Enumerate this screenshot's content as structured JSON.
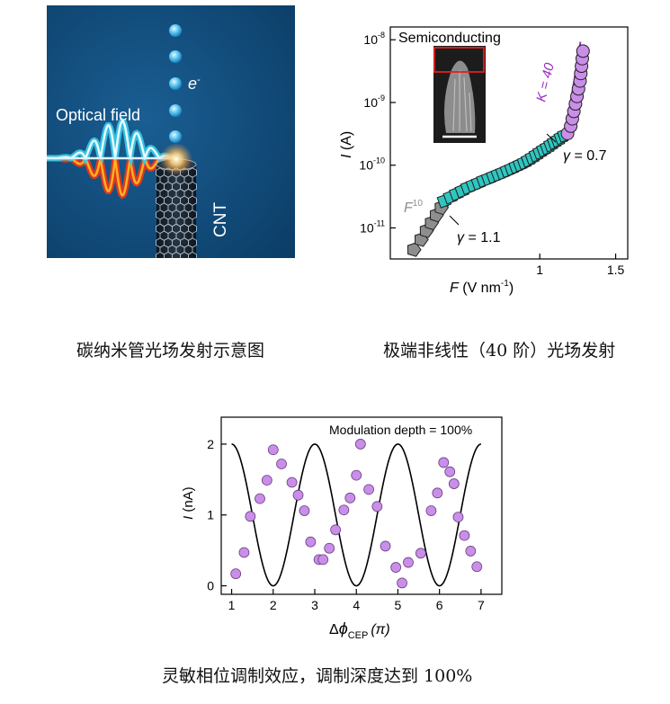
{
  "illustration": {
    "optical_field_label": "Optical field",
    "electron_label": "e",
    "electron_superscript": "-",
    "cnt_label": "CNT",
    "colors": {
      "background": "#0f4a78",
      "wave_cyan": "#36c6e6",
      "wave_red": "#e8381d",
      "electron": "#6fd0f4"
    }
  },
  "captions": {
    "top_left": "碳纳米管光场发射示意图",
    "top_right": "极端非线性（40 阶）光场发射",
    "bottom": "灵敏相位调制效应，调制深度达到 100%"
  },
  "chart_data": [
    {
      "type": "scatter",
      "title": "Semiconducting",
      "xlabel_var": "F",
      "xlabel_unit": "(V nm",
      "xlabel_unit_sup": "-1",
      "xlabel_unit_end": ")",
      "ylabel_var": "I",
      "ylabel_unit": "(A)",
      "xscale": "log",
      "yscale": "log",
      "xlim": [
        0.45,
        1.6
      ],
      "ylim": [
        3.2e-12,
        1.6e-08
      ],
      "x_ticks": [
        {
          "value": 1,
          "label": "1"
        },
        {
          "value": 1.5,
          "label": "1.5"
        }
      ],
      "y_ticks": [
        {
          "value": 1e-08,
          "base": "10",
          "exp": "-8"
        },
        {
          "value": 1e-09,
          "base": "10",
          "exp": "-9"
        },
        {
          "value": 1e-10,
          "base": "10",
          "exp": "-10"
        },
        {
          "value": 1e-11,
          "base": "10",
          "exp": "-11"
        }
      ],
      "series": [
        {
          "name": "gray pentagons",
          "marker": "pentagon",
          "color": "#8e8e8e",
          "x": [
            0.51,
            0.53,
            0.545,
            0.56,
            0.575,
            0.59
          ],
          "y": [
            4.5e-12,
            6.5e-12,
            9e-12,
            1.2e-11,
            1.6e-11,
            2.1e-11
          ]
        },
        {
          "name": "cyan squares",
          "marker": "square",
          "color": "#2fc6c0",
          "x": [
            0.6,
            0.62,
            0.64,
            0.66,
            0.68,
            0.7,
            0.72,
            0.74,
            0.76,
            0.78,
            0.8,
            0.82,
            0.84,
            0.86,
            0.88,
            0.9,
            0.92,
            0.94,
            0.96,
            0.98,
            1.0,
            1.02,
            1.04,
            1.06,
            1.08,
            1.1,
            1.12,
            1.14
          ],
          "y": [
            2.7e-11,
            3.1e-11,
            3.5e-11,
            3.9e-11,
            4.4e-11,
            4.8e-11,
            5.2e-11,
            5.7e-11,
            6.1e-11,
            6.6e-11,
            7.1e-11,
            7.6e-11,
            8.2e-11,
            8.8e-11,
            9.5e-11,
            1.02e-10,
            1.1e-10,
            1.2e-10,
            1.32e-10,
            1.45e-10,
            1.6e-10,
            1.75e-10,
            1.9e-10,
            2.1e-10,
            2.3e-10,
            2.5e-10,
            2.75e-10,
            3e-10
          ]
        },
        {
          "name": "purple circles",
          "marker": "circle",
          "color": "#c98fe8",
          "x": [
            1.16,
            1.18,
            1.19,
            1.2,
            1.21,
            1.22,
            1.23,
            1.24,
            1.245,
            1.25,
            1.255,
            1.26
          ],
          "y": [
            3.2e-10,
            4.2e-10,
            5.5e-10,
            7.2e-10,
            9.5e-10,
            1.25e-09,
            1.65e-09,
            2.2e-09,
            2.9e-09,
            3.8e-09,
            5e-09,
            6.6e-09
          ]
        }
      ],
      "annotations": {
        "gamma_low_symbol": "γ",
        "gamma_low": " = 1.1",
        "gamma_high_symbol": "γ",
        "gamma_high": " = 0.7",
        "slope_k": "K = 40",
        "f_power_base": "F",
        "f_power_exp": "10"
      }
    },
    {
      "type": "scatter",
      "title": "Modulation depth = 100%",
      "xlabel_main": "Δ",
      "xlabel_phi": "ϕ",
      "xlabel_sub": "CEP",
      "xlabel_unit": "(π)",
      "ylabel_var": "I",
      "ylabel_unit": "(nA)",
      "xlim": [
        0.75,
        7.5
      ],
      "ylim": [
        -0.12,
        2.38
      ],
      "x_ticks": [
        1,
        2,
        3,
        4,
        5,
        6,
        7
      ],
      "y_ticks": [
        0,
        1,
        2
      ],
      "fit": {
        "name": "fit",
        "color": "#000000",
        "function": "1 - cos(pi*x)",
        "amplitude": 1,
        "offset": 1
      },
      "series": [
        {
          "name": "data",
          "marker": "circle",
          "color": "#c98fe8",
          "x": [
            1.1,
            1.3,
            1.45,
            1.68,
            1.85,
            2.0,
            2.2,
            2.45,
            2.6,
            2.75,
            2.9,
            3.1,
            3.2,
            3.35,
            3.5,
            3.7,
            3.85,
            4.0,
            4.1,
            4.3,
            4.5,
            4.7,
            4.95,
            5.1,
            5.25,
            5.55,
            5.8,
            5.95,
            6.1,
            6.25,
            6.35,
            6.45,
            6.6,
            6.75,
            6.9
          ],
          "y": [
            0.17,
            0.47,
            0.98,
            1.23,
            1.49,
            1.92,
            1.72,
            1.46,
            1.28,
            1.06,
            0.62,
            0.37,
            0.37,
            0.53,
            0.79,
            1.07,
            1.24,
            1.56,
            2.0,
            1.36,
            1.12,
            0.56,
            0.26,
            0.04,
            0.33,
            0.46,
            1.06,
            1.31,
            1.74,
            1.61,
            1.44,
            0.97,
            0.71,
            0.49,
            0.27
          ]
        }
      ]
    }
  ]
}
